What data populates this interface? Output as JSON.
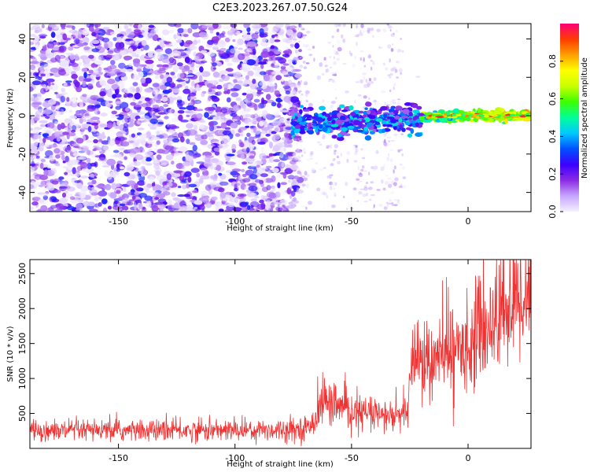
{
  "title": "C2E3.2023.267.07.50.G24",
  "chart_data": [
    {
      "type": "heatmap",
      "xlabel": "Height of straight line (km)",
      "ylabel": "Frequency (Hz)",
      "xlim": [
        -188,
        27
      ],
      "ylim": [
        -50,
        48
      ],
      "xticks": [
        -150,
        -100,
        -50,
        0
      ],
      "yticks": [
        -40,
        -20,
        0,
        20,
        40
      ],
      "colorbar": {
        "label": "Normalized spectral amplitude",
        "range": [
          0,
          1
        ],
        "ticks": [
          "0.0",
          "0.2",
          "0.4",
          "0.6",
          "0.8"
        ],
        "stops": [
          "#f4f0ff",
          "#c7a6ff",
          "#8a2be2",
          "#3c00ff",
          "#0050ff",
          "#00c8ff",
          "#00ff9c",
          "#3cff00",
          "#c8ff00",
          "#ffff00",
          "#ffa000",
          "#ff3c00",
          "#ff0078"
        ]
      },
      "regions": [
        {
          "name": "noise",
          "x_range": [
            -188,
            -72
          ],
          "frequency_range": [
            -50,
            48
          ]
        },
        {
          "name": "signal",
          "x_range": [
            -76,
            27
          ],
          "frequency_center": [
            -4,
            0
          ],
          "amplitude": [
            0.3,
            0.85
          ]
        }
      ]
    },
    {
      "type": "line",
      "xlabel": "Height of straight line (km)",
      "ylabel": "SNR (10 * v/v)",
      "xlim": [
        -188,
        27
      ],
      "ylim": [
        0,
        2700
      ],
      "xticks": [
        -150,
        -100,
        -50,
        0
      ],
      "yticks": [
        500,
        1000,
        1500,
        2000,
        2500
      ],
      "color": "#ee3333",
      "series": [
        {
          "x": [
            -188,
            -160,
            -130,
            -100,
            -80,
            -68,
            -64,
            -62,
            -58,
            -50,
            -40,
            -30,
            -26,
            -24,
            -22,
            -20,
            -15,
            -10,
            -5,
            0,
            5,
            10,
            15,
            20,
            27
          ],
          "y": [
            250,
            250,
            255,
            260,
            270,
            290,
            550,
            700,
            620,
            520,
            480,
            450,
            520,
            1200,
            1400,
            1250,
            1200,
            1350,
            1400,
            1500,
            1650,
            1800,
            1950,
            2100,
            2300
          ]
        }
      ]
    }
  ]
}
